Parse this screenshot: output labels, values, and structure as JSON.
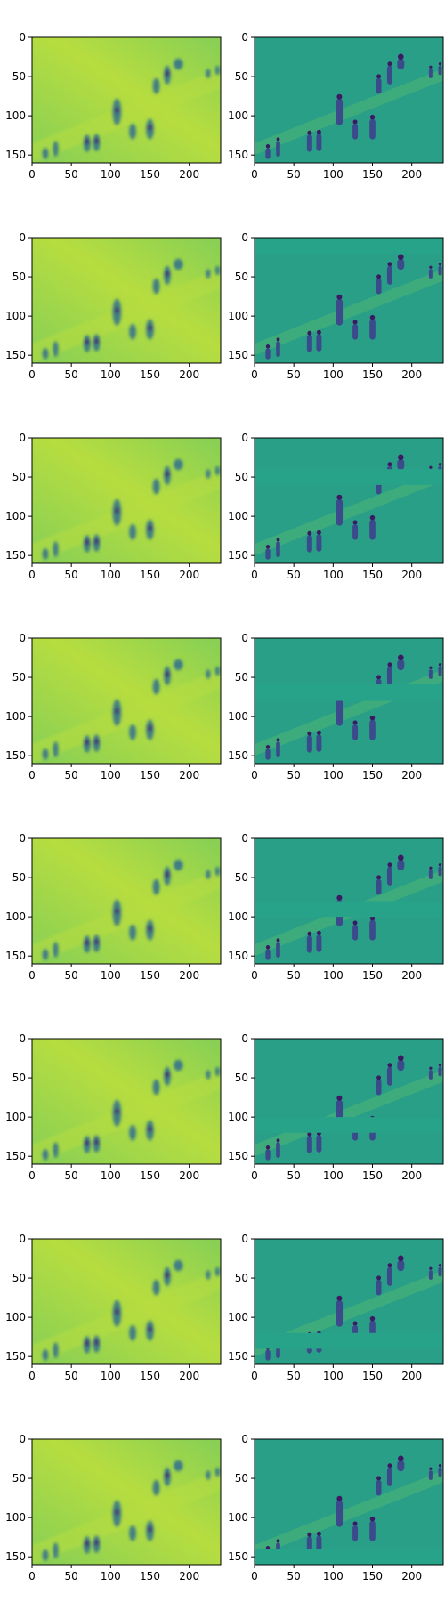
{
  "figure": {
    "rows": 8,
    "cols": 2
  },
  "colors": {
    "left_panel_base": "#86cf56",
    "left_panel_band": "#b7dd3f",
    "left_panel_figures": "#2d6f8e",
    "left_panel_dark": "#46216f",
    "right_panel_base": "#2a9f88",
    "right_panel_light": "#79d152",
    "right_panel_dark": "#3b4a8a",
    "right_panel_darkest": "#3c1a63",
    "right_panel_missing": "#27a38a"
  },
  "chart_data": {
    "type": "heatmap",
    "description": "8x2 grid of image panels; left column = reconstruction, right column = residual/filtered image. Each row masks a different horizontal band in the right panel.",
    "colormap": "viridis",
    "xlim": [
      0,
      240
    ],
    "ylim": [
      160,
      0
    ],
    "x_ticks": [
      0,
      50,
      100,
      150,
      200
    ],
    "y_ticks": [
      0,
      50,
      100,
      150
    ],
    "x_tick_labels": [
      "0",
      "50",
      "100",
      "150",
      "200"
    ],
    "y_tick_labels": [
      "0",
      "50",
      "100",
      "150"
    ],
    "panels": [
      {
        "row": 0,
        "col": 0,
        "kind": "reconstruction",
        "band": null
      },
      {
        "row": 0,
        "col": 1,
        "kind": "residual",
        "band": null
      },
      {
        "row": 1,
        "col": 0,
        "kind": "reconstruction",
        "band": null
      },
      {
        "row": 1,
        "col": 1,
        "kind": "residual",
        "band": [
          0,
          20
        ]
      },
      {
        "row": 2,
        "col": 0,
        "kind": "reconstruction",
        "band": null
      },
      {
        "row": 2,
        "col": 1,
        "kind": "residual",
        "band": [
          40,
          60
        ]
      },
      {
        "row": 3,
        "col": 0,
        "kind": "reconstruction",
        "band": null
      },
      {
        "row": 3,
        "col": 1,
        "kind": "residual",
        "band": [
          58,
          80
        ]
      },
      {
        "row": 4,
        "col": 0,
        "kind": "reconstruction",
        "band": null
      },
      {
        "row": 4,
        "col": 1,
        "kind": "residual",
        "band": [
          80,
          100
        ]
      },
      {
        "row": 5,
        "col": 0,
        "kind": "reconstruction",
        "band": null
      },
      {
        "row": 5,
        "col": 1,
        "kind": "residual",
        "band": [
          100,
          120
        ]
      },
      {
        "row": 6,
        "col": 0,
        "kind": "reconstruction",
        "band": null
      },
      {
        "row": 6,
        "col": 1,
        "kind": "residual",
        "band": [
          120,
          140
        ]
      },
      {
        "row": 7,
        "col": 0,
        "kind": "reconstruction",
        "band": null
      },
      {
        "row": 7,
        "col": 1,
        "kind": "residual",
        "band": [
          140,
          160
        ]
      }
    ],
    "figures": [
      {
        "x": 17,
        "y": 148,
        "w": 8,
        "h": 14
      },
      {
        "x": 30,
        "y": 142,
        "w": 7,
        "h": 20
      },
      {
        "x": 70,
        "y": 135,
        "w": 9,
        "h": 22
      },
      {
        "x": 82,
        "y": 134,
        "w": 9,
        "h": 22
      },
      {
        "x": 108,
        "y": 95,
        "w": 11,
        "h": 34
      },
      {
        "x": 128,
        "y": 120,
        "w": 9,
        "h": 20
      },
      {
        "x": 150,
        "y": 117,
        "w": 10,
        "h": 26
      },
      {
        "x": 158,
        "y": 62,
        "w": 9,
        "h": 20
      },
      {
        "x": 172,
        "y": 48,
        "w": 9,
        "h": 24
      },
      {
        "x": 186,
        "y": 34,
        "w": 12,
        "h": 14
      },
      {
        "x": 224,
        "y": 46,
        "w": 6,
        "h": 12
      },
      {
        "x": 236,
        "y": 42,
        "w": 6,
        "h": 12
      }
    ]
  }
}
